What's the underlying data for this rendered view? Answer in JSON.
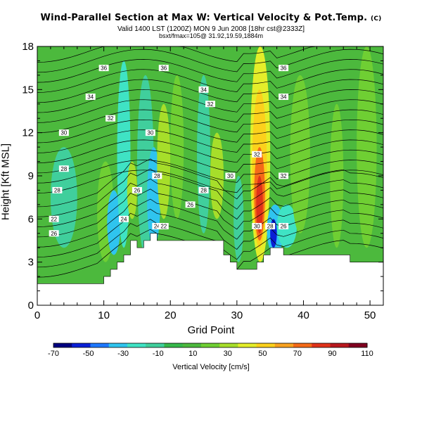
{
  "title": "Wind-Parallel Section at Max W: Vertical Velocity & Pot.Temp.",
  "title_unit": "(C)",
  "subtitle": "Valid 1400 LST (1200Z) MON 9 Jun 2008 [18hr cst@2333Z]",
  "subtitle2": "bsxt/fmax=105@ 31.92,19.59,1884m",
  "chart_data": {
    "type": "heatmap",
    "xlabel": "Grid Point",
    "ylabel": "Height [Kft MSL]",
    "xlim": [
      0,
      52
    ],
    "ylim": [
      0,
      18
    ],
    "xticks": [
      0,
      10,
      20,
      30,
      40,
      50
    ],
    "yticks": [
      0,
      3,
      6,
      9,
      12,
      15,
      18
    ],
    "colorbar": {
      "label": "Vertical Velocity [cm/s]",
      "ticks": [
        -70,
        -50,
        -30,
        -10,
        10,
        30,
        50,
        70,
        90,
        110
      ],
      "colors": [
        "#000080",
        "#0a1fd6",
        "#1e78ff",
        "#2fc4ef",
        "#3fe3c4",
        "#40cf9c",
        "#36b84a",
        "#4cb93d",
        "#6fcf33",
        "#a7de2a",
        "#e4ee2a",
        "#fcd11c",
        "#f9a220",
        "#f56a18",
        "#e0321a",
        "#b8181e",
        "#800020"
      ]
    },
    "terrain_top_kft": [
      1.5,
      1.5,
      1.5,
      1.5,
      1.5,
      1.5,
      1.5,
      1.5,
      1.5,
      1.5,
      2.0,
      2.5,
      3.0,
      3.5,
      4.5,
      4.0,
      4.5,
      5.0,
      4.5,
      4.5,
      4.5,
      4.5,
      4.5,
      4.5,
      4.5,
      4.5,
      4.5,
      4.5,
      3.5,
      3.0,
      2.5,
      2.5,
      2.5,
      3.0,
      3.5,
      4.0,
      4.0,
      3.5,
      3.5,
      3.5,
      3.5,
      3.5,
      3.5,
      3.5,
      3.5,
      3.5,
      3.5,
      3.0,
      3.0,
      3.0,
      3.0,
      3.0,
      3.0
    ],
    "updraft_core": {
      "x": 33,
      "w_max": 105
    },
    "contour_labels": [
      {
        "x": 2.5,
        "y": 5.0,
        "text": "26"
      },
      {
        "x": 3.0,
        "y": 8.0,
        "text": "28"
      },
      {
        "x": 2.5,
        "y": 6.0,
        "text": "22"
      },
      {
        "x": 4.0,
        "y": 9.5,
        "text": "28"
      },
      {
        "x": 4.0,
        "y": 12.0,
        "text": "30"
      },
      {
        "x": 8.0,
        "y": 14.5,
        "text": "34"
      },
      {
        "x": 10.0,
        "y": 16.5,
        "text": "36"
      },
      {
        "x": 11.0,
        "y": 13.0,
        "text": "32"
      },
      {
        "x": 13.0,
        "y": 6.0,
        "text": "24"
      },
      {
        "x": 15.0,
        "y": 8.0,
        "text": "26"
      },
      {
        "x": 17.0,
        "y": 12.0,
        "text": "30"
      },
      {
        "x": 18.0,
        "y": 9.0,
        "text": "28"
      },
      {
        "x": 18.0,
        "y": 5.5,
        "text": "24"
      },
      {
        "x": 19.0,
        "y": 5.5,
        "text": "22"
      },
      {
        "x": 19.0,
        "y": 16.5,
        "text": "36"
      },
      {
        "x": 25.0,
        "y": 15.0,
        "text": "34"
      },
      {
        "x": 26.0,
        "y": 14.0,
        "text": "32"
      },
      {
        "x": 23.0,
        "y": 7.0,
        "text": "26"
      },
      {
        "x": 25.0,
        "y": 8.0,
        "text": "28"
      },
      {
        "x": 29.0,
        "y": 9.0,
        "text": "30"
      },
      {
        "x": 33.0,
        "y": 10.5,
        "text": "32"
      },
      {
        "x": 33.0,
        "y": 5.5,
        "text": "30"
      },
      {
        "x": 35.0,
        "y": 5.5,
        "text": "28"
      },
      {
        "x": 37.0,
        "y": 5.5,
        "text": "26"
      },
      {
        "x": 37.0,
        "y": 9.0,
        "text": "32"
      },
      {
        "x": 37.0,
        "y": 14.5,
        "text": "34"
      },
      {
        "x": 37.0,
        "y": 16.5,
        "text": "36"
      }
    ]
  }
}
